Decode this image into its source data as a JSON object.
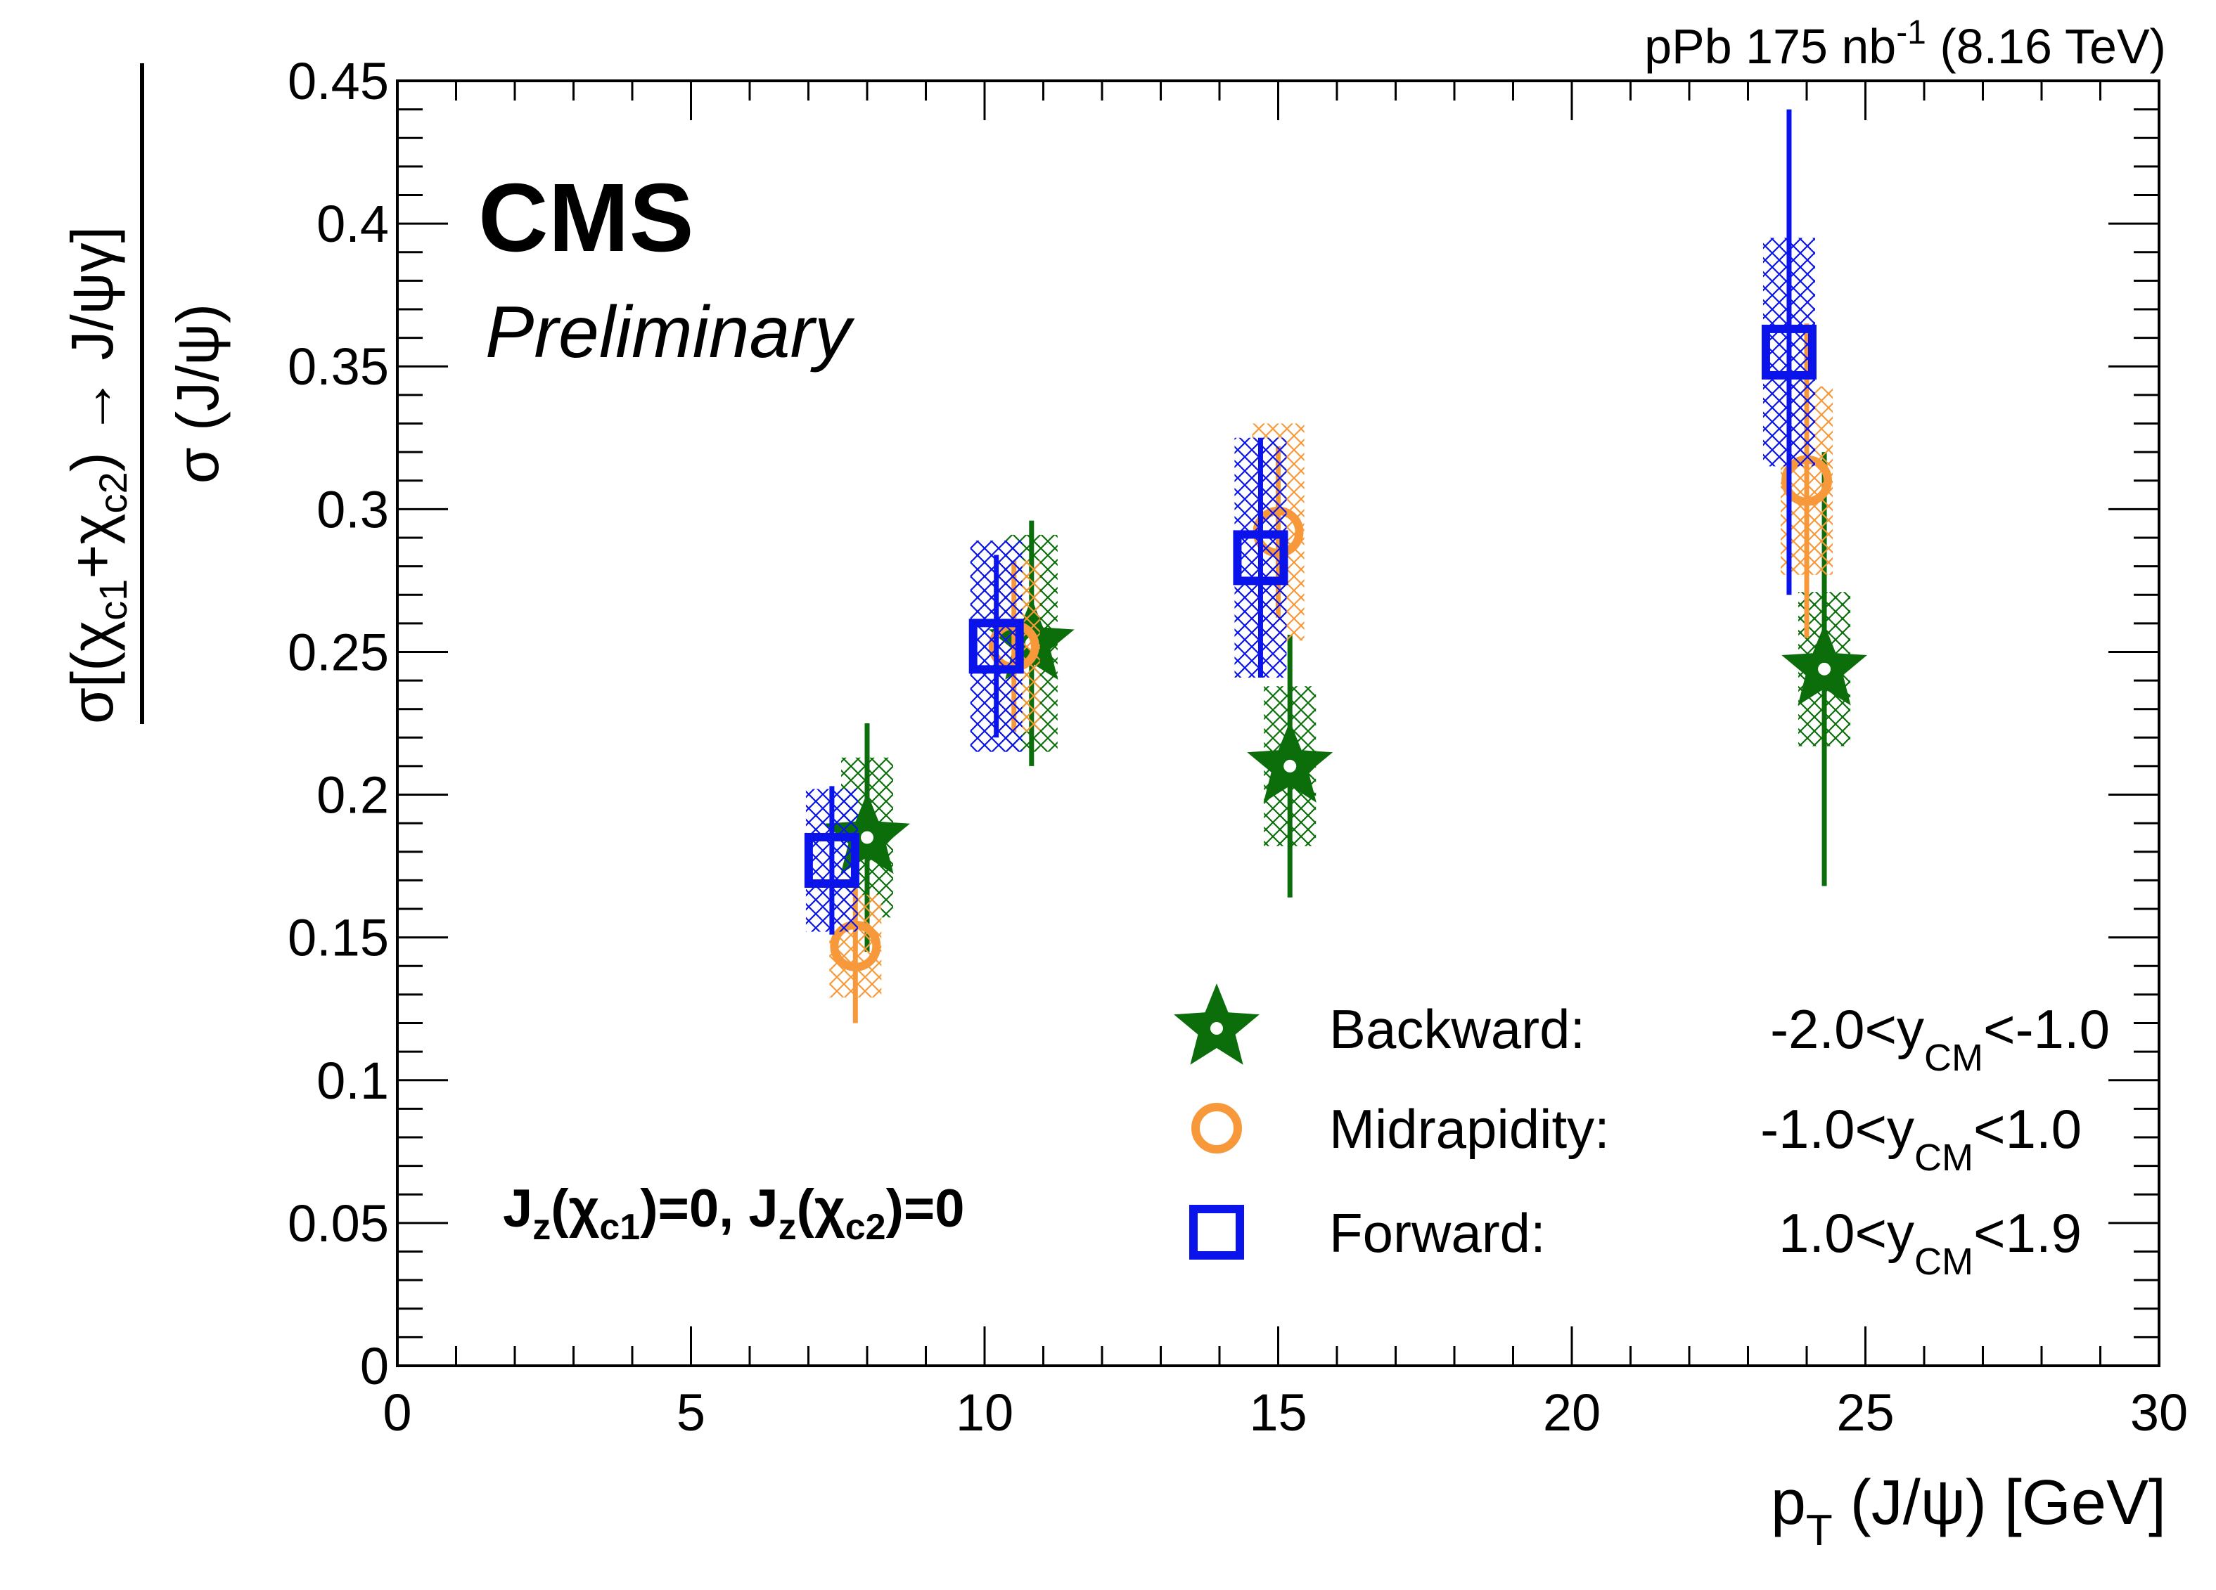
{
  "chart_data": {
    "type": "scatter",
    "experiment": "CMS",
    "status": "Preliminary",
    "lumi_label": {
      "prefix": "pPb 175 nb",
      "superscript": "-1",
      "suffix": " (8.16 TeV)"
    },
    "xlabel": "p_T (J/ψ) [GeV]",
    "ylabel": "σ[(χ_c1+χ_c2) → J/ψγ] / σ (J/ψ)",
    "xlim": [
      0,
      30
    ],
    "ylim": [
      0,
      0.45
    ],
    "xticks": [
      "0",
      "5",
      "10",
      "15",
      "20",
      "25",
      "30"
    ],
    "yticks": [
      "0",
      "0.05",
      "0.1",
      "0.15",
      "0.2",
      "0.25",
      "0.3",
      "0.35",
      "0.4",
      "0.45"
    ],
    "annotation": "J_z(χ_c1)=0, J_z(χ_c2)=0",
    "series": [
      {
        "name": "Backward",
        "legend_label": "Backward:",
        "legend_range": "-2.0<y_CM<-1.0",
        "marker": "star",
        "color": "#0b6e0b",
        "x": [
          8.0,
          10.8,
          15.2,
          24.3
        ],
        "y": [
          0.185,
          0.253,
          0.21,
          0.244
        ],
        "stat_err": [
          0.04,
          0.043,
          0.046,
          0.076
        ],
        "sys_err": [
          0.028,
          0.038,
          0.028,
          0.027
        ]
      },
      {
        "name": "Midrapidity",
        "legend_label": "Midrapidity:",
        "legend_range": "-1.0<y_CM<1.0",
        "marker": "circle",
        "color": "#f7993a",
        "x": [
          7.8,
          10.5,
          15.0,
          24.0
        ],
        "y": [
          0.147,
          0.252,
          0.292,
          0.31
        ],
        "stat_err": [
          0.027,
          0.03,
          0.03,
          0.055
        ],
        "sys_err": [
          0.018,
          0.03,
          0.038,
          0.033
        ]
      },
      {
        "name": "Forward",
        "legend_label": "Forward:",
        "legend_range": "1.0<y_CM<1.9",
        "marker": "square",
        "color": "#0a14ea",
        "x": [
          7.4,
          10.2,
          14.7,
          23.7
        ],
        "y": [
          0.177,
          0.252,
          0.283,
          0.355
        ],
        "stat_err": [
          0.026,
          0.032,
          0.042,
          0.085
        ],
        "sys_err": [
          0.025,
          0.037,
          0.042,
          0.04
        ]
      }
    ]
  }
}
